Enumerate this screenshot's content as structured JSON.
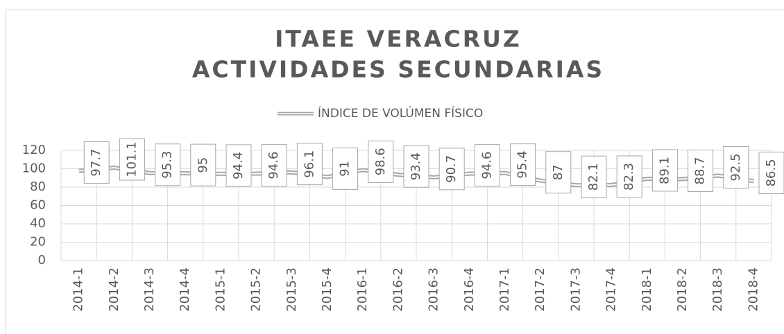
{
  "chart_data": {
    "type": "line",
    "title": [
      "ITAEE VERACRUZ",
      "ACTIVIDADES SECUNDARIAS"
    ],
    "categories": [
      "2014-1",
      "2014-2",
      "2014-3",
      "2014-4",
      "2015-1",
      "2015-2",
      "2015-3",
      "2015-4",
      "2016-1",
      "2016-2",
      "2016-3",
      "2016-4",
      "2017-1",
      "2017-2",
      "2017-3",
      "2017-4",
      "2018-1",
      "2018-2",
      "2018-3",
      "2018-4"
    ],
    "series": [
      {
        "name": "ÍNDICE DE VOLÚMEN FÍSICO",
        "color": "#a6a6a6",
        "values": [
          97.7,
          101.1,
          95.3,
          95,
          94.4,
          94.6,
          96.1,
          91,
          98.6,
          93.4,
          90.7,
          94.6,
          95.4,
          87,
          82.1,
          82.3,
          89.1,
          88.7,
          92.5,
          86.5
        ]
      }
    ],
    "ylim": [
      0,
      120
    ],
    "yticks": [
      0,
      20,
      40,
      60,
      80,
      100,
      120
    ],
    "grid": true,
    "legend": "top"
  }
}
